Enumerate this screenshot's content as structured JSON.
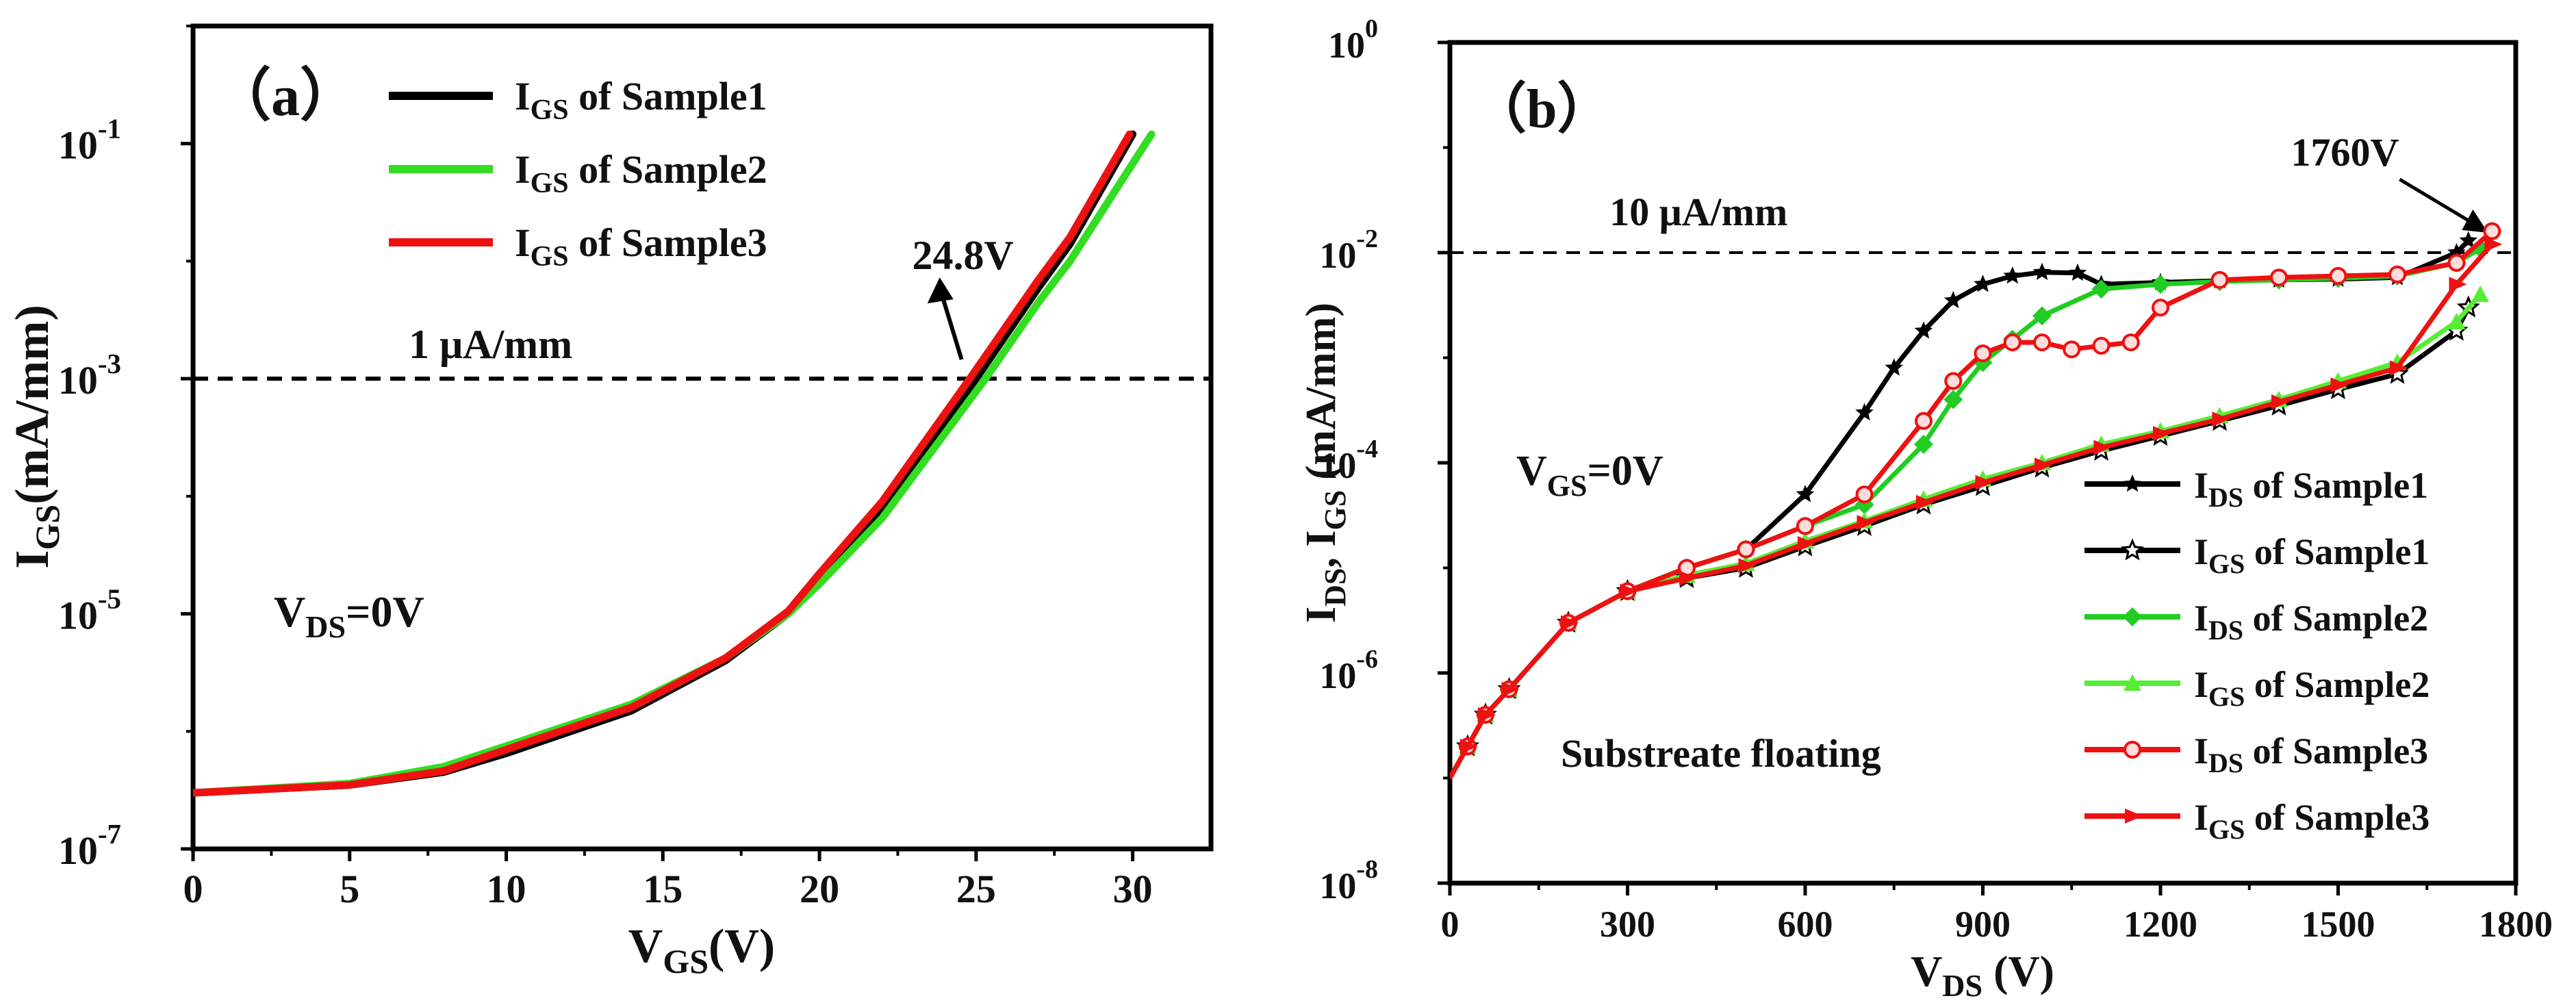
{
  "chart_data": [
    {
      "id": "a",
      "type": "line",
      "yscale": "log",
      "panel_label": "（a）",
      "xlabel_main": "V",
      "xlabel_sub": "GS",
      "xlabel_tail": "(V)",
      "ylabel_main": "I",
      "ylabel_sub": "GS",
      "ylabel_tail": "(mA/mm)",
      "xlim": [
        0,
        32.5
      ],
      "ylim": [
        1e-07,
        1
      ],
      "xticks": [
        0,
        5,
        10,
        15,
        20,
        25,
        30
      ],
      "xtick_labels": [
        "0",
        "5",
        "10",
        "15",
        "20",
        "25",
        "30"
      ],
      "yticks": [
        1e-07,
        1e-05,
        0.001,
        0.1
      ],
      "ytick_base": "10",
      "ytick_exps": [
        "-7",
        "-5",
        "-3",
        "-1"
      ],
      "reference_line": {
        "y": 0.001,
        "label": "1 μA/mm"
      },
      "annotation": {
        "text": "24.8V",
        "x": 24.8,
        "y": 0.001
      },
      "condition": {
        "main": "V",
        "sub": "DS",
        "tail": "=0V"
      },
      "series": [
        {
          "name": "Sample1",
          "legend_main": "I",
          "legend_sub": "GS",
          "legend_tail": " of Sample1",
          "color": "#000000",
          "x": [
            0,
            5,
            8,
            10,
            14,
            17,
            19,
            20,
            22,
            25,
            27,
            28,
            30.0
          ],
          "y": [
            3e-07,
            3.5e-07,
            4.5e-07,
            6.5e-07,
            1.5e-06,
            4e-06,
            1e-05,
            2e-05,
            8e-05,
            0.001,
            0.006,
            0.014,
            0.12
          ]
        },
        {
          "name": "Sample2",
          "legend_main": "I",
          "legend_sub": "GS",
          "legend_tail": " of Sample2",
          "color": "#33dd22",
          "x": [
            0,
            5,
            8,
            10,
            14,
            17,
            19,
            20,
            22,
            25.3,
            27,
            28,
            30.6
          ],
          "y": [
            3e-07,
            3.6e-07,
            5e-07,
            7.5e-07,
            1.7e-06,
            4.2e-06,
            1e-05,
            1.8e-05,
            6.5e-05,
            0.001,
            0.0045,
            0.01,
            0.12
          ]
        },
        {
          "name": "Sample3",
          "legend_main": "I",
          "legend_sub": "GS",
          "legend_tail": " of Sample3",
          "color": "#ee1111",
          "x": [
            0,
            5,
            8,
            10,
            14,
            17,
            19,
            20,
            22,
            24.8,
            27,
            28,
            29.9
          ],
          "y": [
            3e-07,
            3.5e-07,
            4.6e-07,
            7e-07,
            1.6e-06,
            4.2e-06,
            1.05e-05,
            2.2e-05,
            9e-05,
            0.001,
            0.007,
            0.016,
            0.12
          ]
        }
      ]
    },
    {
      "id": "b",
      "type": "line",
      "yscale": "log",
      "panel_label": "（b）",
      "xlabel_main": "V",
      "xlabel_sub": "DS",
      "xlabel_tail": " (V)",
      "ylabel_parts": [
        "I",
        "DS",
        ", I",
        "GS",
        " (mA/mm)"
      ],
      "xlim": [
        0,
        1800
      ],
      "ylim": [
        1e-08,
        1
      ],
      "xticks": [
        0,
        300,
        600,
        900,
        1200,
        1500,
        1800
      ],
      "xtick_labels": [
        "0",
        "300",
        "600",
        "900",
        "1200",
        "1500",
        "1800"
      ],
      "yticks": [
        1e-08,
        1e-06,
        0.0001,
        0.01,
        1
      ],
      "ytick_base": "10",
      "ytick_exps": [
        "-8",
        "-6",
        "-4",
        "-2",
        "0"
      ],
      "reference_line": {
        "y": 0.01,
        "label": "10 μA/mm"
      },
      "annotation": {
        "text": "1760V",
        "x": 1760,
        "y": 0.015
      },
      "condition": {
        "main": "V",
        "sub": "GS",
        "tail": "=0V"
      },
      "note": "Substreate floating",
      "series": [
        {
          "name": "IDS Sample1",
          "legend_main": "I",
          "legend_sub": "DS",
          "legend_tail": " of Sample1",
          "color": "#000000",
          "marker": "star-filled",
          "x": [
            0,
            30,
            60,
            100,
            200,
            300,
            400,
            500,
            600,
            700,
            750,
            800,
            850,
            900,
            950,
            1000,
            1060,
            1100,
            1200,
            1300,
            1400,
            1500,
            1600,
            1700,
            1720
          ],
          "y": [
            1e-07,
            2e-07,
            4e-07,
            7e-07,
            3e-06,
            6e-06,
            1e-05,
            1.5e-05,
            5e-05,
            0.0003,
            0.0008,
            0.0018,
            0.0035,
            0.005,
            0.006,
            0.0065,
            0.0064,
            0.005,
            0.0052,
            0.0054,
            0.0055,
            0.0056,
            0.0058,
            0.01,
            0.013
          ]
        },
        {
          "name": "IGS Sample1",
          "legend_main": "I",
          "legend_sub": "GS",
          "legend_tail": " of Sample1",
          "color": "#000000",
          "marker": "star-open",
          "x": [
            0,
            30,
            60,
            100,
            200,
            300,
            400,
            500,
            600,
            700,
            800,
            900,
            1000,
            1100,
            1200,
            1300,
            1400,
            1500,
            1600,
            1700,
            1720
          ],
          "y": [
            1e-07,
            2e-07,
            4e-07,
            7e-07,
            3e-06,
            6e-06,
            8e-06,
            1e-05,
            1.6e-05,
            2.5e-05,
            4e-05,
            6e-05,
            9e-05,
            0.00013,
            0.00018,
            0.00025,
            0.00035,
            0.0005,
            0.0007,
            0.0018,
            0.003
          ]
        },
        {
          "name": "IDS Sample2",
          "legend_main": "I",
          "legend_sub": "DS",
          "legend_tail": " of Sample2",
          "color": "#22cc22",
          "marker": "diamond",
          "x": [
            0,
            30,
            60,
            100,
            200,
            300,
            400,
            500,
            600,
            700,
            800,
            850,
            900,
            950,
            1000,
            1100,
            1200,
            1300,
            1400,
            1500,
            1600,
            1700,
            1740
          ],
          "y": [
            1e-07,
            2e-07,
            4e-07,
            7e-07,
            3e-06,
            6e-06,
            1e-05,
            1.5e-05,
            2.5e-05,
            4e-05,
            0.00015,
            0.0004,
            0.0009,
            0.0015,
            0.0025,
            0.0045,
            0.005,
            0.0053,
            0.0055,
            0.0057,
            0.006,
            0.008,
            0.011
          ]
        },
        {
          "name": "IGS Sample2",
          "legend_main": "I",
          "legend_sub": "GS",
          "legend_tail": " of Sample2",
          "color": "#55ee33",
          "marker": "triangle",
          "x": [
            0,
            30,
            60,
            100,
            200,
            300,
            400,
            500,
            600,
            700,
            800,
            900,
            1000,
            1100,
            1200,
            1300,
            1400,
            1500,
            1600,
            1700,
            1740
          ],
          "y": [
            1e-07,
            2e-07,
            4e-07,
            7e-07,
            3e-06,
            6e-06,
            8.5e-06,
            1.1e-05,
            1.8e-05,
            2.8e-05,
            4.5e-05,
            7e-05,
            0.0001,
            0.00015,
            0.0002,
            0.00028,
            0.0004,
            0.0006,
            0.0009,
            0.0022,
            0.004
          ]
        },
        {
          "name": "IDS Sample3",
          "legend_main": "I",
          "legend_sub": "DS",
          "legend_tail": " of Sample3",
          "color": "#ee1111",
          "marker": "circle",
          "x": [
            0,
            30,
            60,
            100,
            200,
            300,
            400,
            500,
            600,
            700,
            800,
            850,
            900,
            950,
            1000,
            1050,
            1100,
            1150,
            1200,
            1300,
            1400,
            1500,
            1600,
            1700,
            1760
          ],
          "y": [
            1e-07,
            2e-07,
            4e-07,
            7e-07,
            3e-06,
            6e-06,
            1e-05,
            1.5e-05,
            2.5e-05,
            5e-05,
            0.00025,
            0.0006,
            0.0011,
            0.0014,
            0.0014,
            0.0012,
            0.0013,
            0.0014,
            0.003,
            0.0055,
            0.0058,
            0.006,
            0.0062,
            0.008,
            0.016
          ]
        },
        {
          "name": "IGS Sample3",
          "legend_main": "I",
          "legend_sub": "GS",
          "legend_tail": " of Sample3",
          "color": "#ee1111",
          "marker": "arrow",
          "x": [
            0,
            30,
            60,
            100,
            200,
            300,
            400,
            500,
            600,
            700,
            800,
            900,
            1000,
            1100,
            1200,
            1300,
            1400,
            1500,
            1600,
            1700,
            1760
          ],
          "y": [
            1e-07,
            2e-07,
            4e-07,
            7e-07,
            3e-06,
            6e-06,
            8e-06,
            1.05e-05,
            1.7e-05,
            2.7e-05,
            4.2e-05,
            6.5e-05,
            9.5e-05,
            0.00014,
            0.00019,
            0.00026,
            0.00038,
            0.00055,
            0.0008,
            0.005,
            0.012
          ]
        }
      ]
    }
  ]
}
